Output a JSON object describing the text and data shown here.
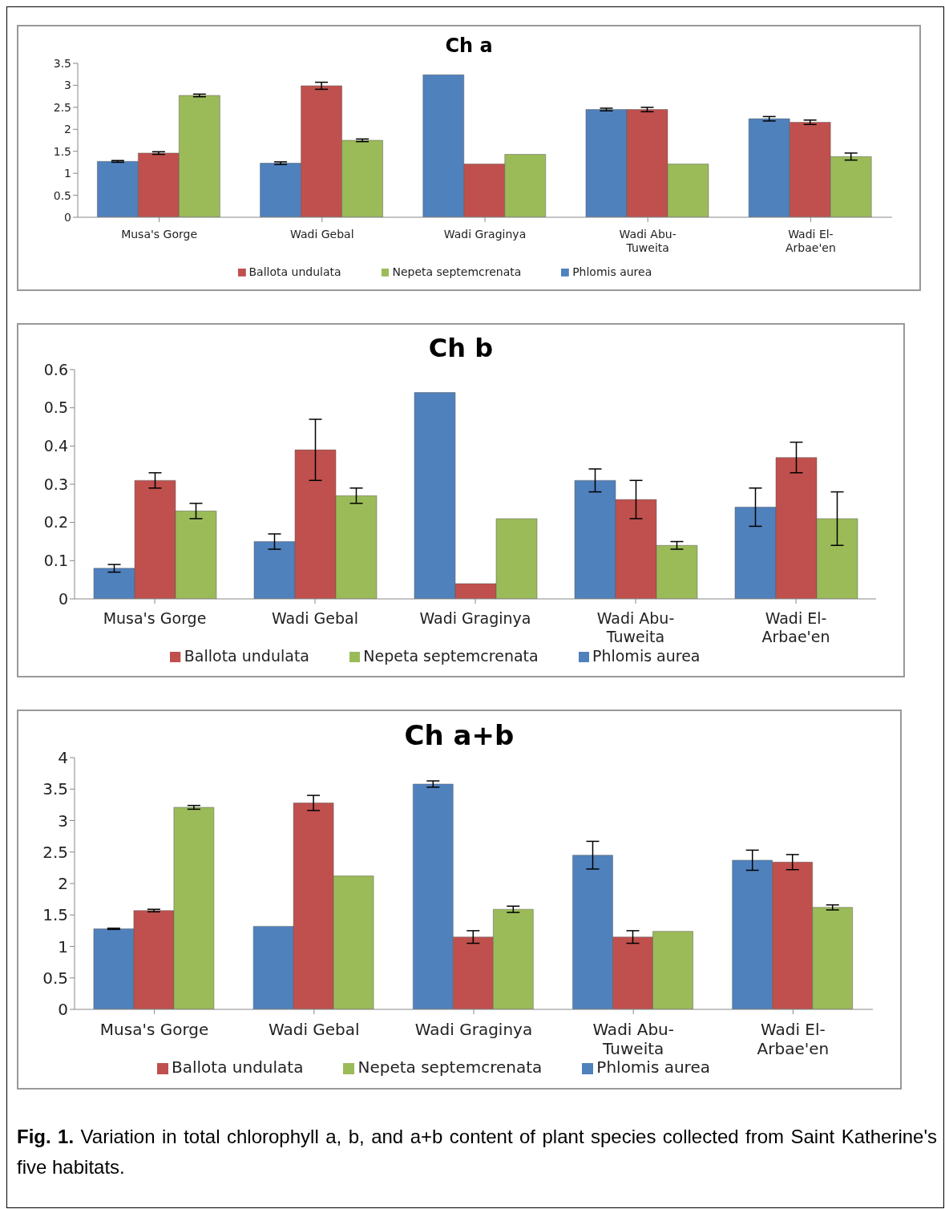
{
  "chart_data": [
    {
      "type": "bar",
      "title": "Ch a",
      "categories": [
        "Musa's Gorge",
        "Wadi Gebal",
        "Wadi Graginya",
        "Wadi Abu-Tuweita",
        "Wadi El-Arbae'en"
      ],
      "ylim": [
        0,
        3.5
      ],
      "yticks": [
        0,
        0.5,
        1,
        1.5,
        2,
        2.5,
        3,
        3.5
      ],
      "grid": false,
      "legend": "bottom",
      "series": [
        {
          "name": "Phlomis aurea",
          "color": "#4f81bd",
          "values": [
            1.27,
            1.23,
            3.24,
            2.45,
            2.24
          ],
          "errors": [
            0.02,
            0.03,
            null,
            0.03,
            0.05
          ]
        },
        {
          "name": "Ballota undulata",
          "color": "#c0504d",
          "values": [
            1.46,
            2.99,
            1.21,
            2.45,
            2.16
          ],
          "errors": [
            0.03,
            0.08,
            null,
            0.05,
            0.05
          ]
        },
        {
          "name": "Nepeta septemcrenata",
          "color": "#9bbb59",
          "values": [
            2.77,
            1.75,
            1.43,
            1.21,
            1.38
          ],
          "errors": [
            0.03,
            0.03,
            null,
            null,
            0.08
          ]
        }
      ]
    },
    {
      "type": "bar",
      "title": "Ch b",
      "categories": [
        "Musa's Gorge",
        "Wadi Gebal",
        "Wadi Graginya",
        "Wadi Abu-Tuweita",
        "Wadi El-Arbae'en"
      ],
      "ylim": [
        0,
        0.6
      ],
      "yticks": [
        0,
        0.1,
        0.2,
        0.3,
        0.4,
        0.5,
        0.6
      ],
      "grid": false,
      "legend": "bottom",
      "series": [
        {
          "name": "Phlomis aurea",
          "color": "#4f81bd",
          "values": [
            0.08,
            0.15,
            0.54,
            0.31,
            0.24
          ],
          "errors": [
            0.01,
            0.02,
            null,
            0.03,
            0.05
          ]
        },
        {
          "name": "Ballota undulata",
          "color": "#c0504d",
          "values": [
            0.31,
            0.39,
            0.04,
            0.26,
            0.37
          ],
          "errors": [
            0.02,
            0.08,
            null,
            0.05,
            0.04
          ]
        },
        {
          "name": "Nepeta septemcrenata",
          "color": "#9bbb59",
          "values": [
            0.23,
            0.27,
            0.21,
            0.14,
            0.21
          ],
          "errors": [
            0.02,
            0.02,
            null,
            0.01,
            0.07
          ]
        }
      ]
    },
    {
      "type": "bar",
      "title": "Ch a+b",
      "categories": [
        "Musa's Gorge",
        "Wadi Gebal",
        "Wadi Graginya",
        "Wadi Abu-Tuweita",
        "Wadi El-Arbae'en"
      ],
      "ylim": [
        0,
        4
      ],
      "yticks": [
        0,
        0.5,
        1,
        1.5,
        2,
        2.5,
        3,
        3.5,
        4
      ],
      "grid": false,
      "legend": "bottom",
      "annotations": [
        "Fig. 1.",
        "Variation in total chlorophyll a, b, and a+b content of plant species collected from Saint Katherine's five habitats."
      ],
      "series": [
        {
          "name": "Phlomis aurea",
          "color": "#4f81bd",
          "values": [
            1.28,
            1.32,
            3.58,
            2.45,
            2.37
          ],
          "errors": [
            0.01,
            null,
            0.05,
            0.22,
            0.16
          ]
        },
        {
          "name": "Ballota undulata",
          "color": "#c0504d",
          "values": [
            1.57,
            3.28,
            1.15,
            1.15,
            2.34
          ],
          "errors": [
            0.02,
            0.12,
            0.1,
            0.1,
            0.12
          ]
        },
        {
          "name": "Nepeta septemcrenata",
          "color": "#9bbb59",
          "values": [
            3.21,
            2.12,
            1.59,
            1.24,
            1.62
          ],
          "errors": [
            0.03,
            null,
            0.05,
            null,
            0.04
          ]
        }
      ]
    }
  ]
}
